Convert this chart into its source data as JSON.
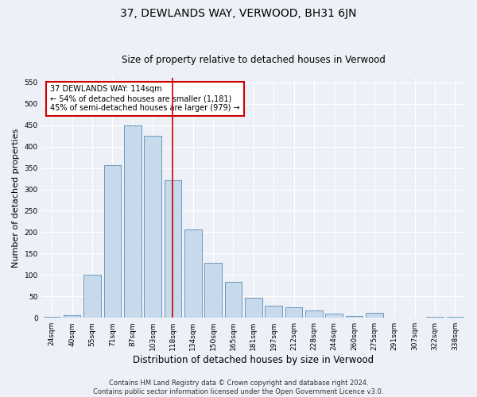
{
  "title": "37, DEWLANDS WAY, VERWOOD, BH31 6JN",
  "subtitle": "Size of property relative to detached houses in Verwood",
  "xlabel": "Distribution of detached houses by size in Verwood",
  "ylabel": "Number of detached properties",
  "categories": [
    "24sqm",
    "40sqm",
    "55sqm",
    "71sqm",
    "87sqm",
    "103sqm",
    "118sqm",
    "134sqm",
    "150sqm",
    "165sqm",
    "181sqm",
    "197sqm",
    "212sqm",
    "228sqm",
    "244sqm",
    "260sqm",
    "275sqm",
    "291sqm",
    "307sqm",
    "322sqm",
    "338sqm"
  ],
  "values": [
    3,
    6,
    100,
    356,
    449,
    425,
    322,
    207,
    129,
    84,
    47,
    28,
    24,
    18,
    10,
    5,
    11,
    1,
    1,
    2,
    2
  ],
  "bar_color": "#c9d9ec",
  "bar_edge_color": "#5b8db8",
  "vline_index": 6,
  "vline_color": "#cc0000",
  "annotation_text": "37 DEWLANDS WAY: 114sqm\n← 54% of detached houses are smaller (1,181)\n45% of semi-detached houses are larger (979) →",
  "annotation_box_color": "white",
  "annotation_box_edge": "#cc0000",
  "ylim": [
    0,
    560
  ],
  "yticks": [
    0,
    50,
    100,
    150,
    200,
    250,
    300,
    350,
    400,
    450,
    500,
    550
  ],
  "footer": "Contains HM Land Registry data © Crown copyright and database right 2024.\nContains public sector information licensed under the Open Government Licence v3.0.",
  "bg_color": "#edf1f7",
  "plot_bg_color": "#edf1f7",
  "grid_color": "white",
  "title_fontsize": 10,
  "subtitle_fontsize": 8.5,
  "xlabel_fontsize": 8.5,
  "ylabel_fontsize": 8,
  "tick_fontsize": 6.5,
  "footer_fontsize": 6
}
